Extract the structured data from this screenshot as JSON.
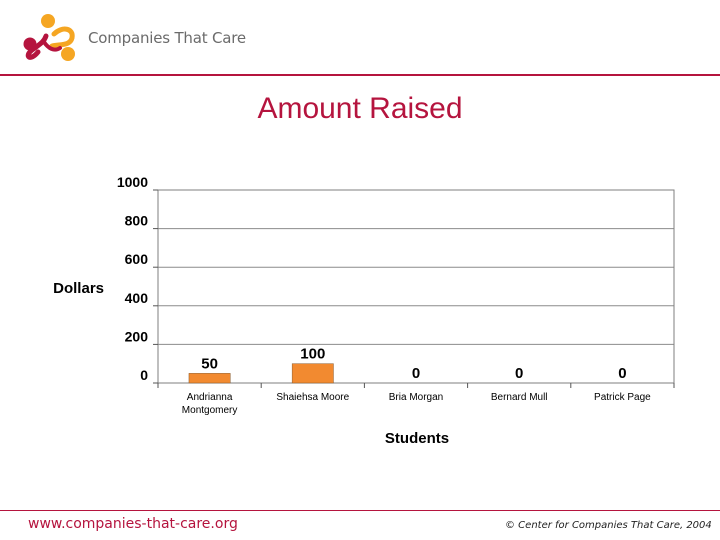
{
  "header": {
    "brand": "Companies That Care",
    "accent_color": "#b5143e",
    "logo_colors": [
      "#f5a623",
      "#b5143e"
    ]
  },
  "slide": {
    "title": "Amount Raised"
  },
  "chart_data": {
    "type": "bar",
    "categories": [
      "Andrianna Montgomery",
      "Shaiehsa Moore",
      "Bria Morgan",
      "Bernard Mull",
      "Patrick Page"
    ],
    "values": [
      50,
      100,
      0,
      0,
      0
    ],
    "data_labels": [
      "50",
      "100",
      "0",
      "0",
      "0"
    ],
    "xlabel": "Students",
    "ylabel": "Dollars",
    "ylim": [
      0,
      1000
    ],
    "yticks": [
      0,
      200,
      400,
      600,
      800,
      1000
    ],
    "grid": true,
    "legend": "none",
    "bar_color": "#f28a30"
  },
  "footer": {
    "website": "www.companies-that-care.org",
    "copyright": "© Center for Companies That Care, 2004"
  }
}
